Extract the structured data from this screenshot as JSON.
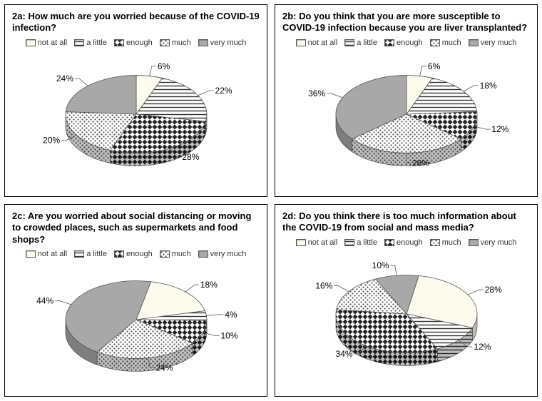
{
  "categories": [
    "not at all",
    "a little",
    "enough",
    "much",
    "very much"
  ],
  "patterns": {
    "not_at_all": {
      "type": "plain",
      "fill": "#fcfbee"
    },
    "a_little": {
      "type": "hstripe",
      "bg": "#ffffff",
      "stroke": "#333333"
    },
    "enough": {
      "type": "diamond",
      "bg": "#ffffff",
      "stroke": "#222222"
    },
    "much": {
      "type": "dots",
      "bg": "#ffffff",
      "fill": "#555555"
    },
    "very_much": {
      "type": "plain",
      "fill": "#a8a8a8"
    }
  },
  "label_fontsize": 12,
  "title_fontsize": 13,
  "pie_tilt": 0.55,
  "pie_thickness": 18,
  "pie_rx": 110,
  "border_color": "#000000",
  "background": "#ffffff",
  "panels": [
    {
      "id": "2a",
      "title": "2a: How much are you worried because of the COVID-19 infection?",
      "start_angle": -90,
      "slices": [
        {
          "label": "not at all",
          "value": 6,
          "pattern": "not_at_all"
        },
        {
          "label": "a little",
          "value": 22,
          "pattern": "a_little"
        },
        {
          "label": "enough",
          "value": 28,
          "pattern": "enough"
        },
        {
          "label": "much",
          "value": 20,
          "pattern": "much"
        },
        {
          "label": "very much",
          "value": 24,
          "pattern": "very_much"
        }
      ]
    },
    {
      "id": "2b",
      "title": "2b: Do you think that you are more susceptible to COVID-19 infection because you are liver transplanted?",
      "start_angle": -90,
      "slices": [
        {
          "label": "not at all",
          "value": 6,
          "pattern": "not_at_all"
        },
        {
          "label": "a little",
          "value": 18,
          "pattern": "a_little"
        },
        {
          "label": "enough",
          "value": 12,
          "pattern": "enough"
        },
        {
          "label": "much",
          "value": 28,
          "pattern": "much"
        },
        {
          "label": "very much",
          "value": 36,
          "pattern": "very_much"
        }
      ]
    },
    {
      "id": "2c",
      "title": "2c: Are you worried about social distancing or moving to crowded places, such as supermarkets and food shops?",
      "start_angle": -78,
      "slices": [
        {
          "label": "not at all",
          "value": 18,
          "pattern": "not_at_all"
        },
        {
          "label": "a little",
          "value": 4,
          "pattern": "a_little"
        },
        {
          "label": "enough",
          "value": 10,
          "pattern": "enough"
        },
        {
          "label": "much",
          "value": 24,
          "pattern": "much"
        },
        {
          "label": "very much",
          "value": 44,
          "pattern": "very_much"
        }
      ]
    },
    {
      "id": "2d",
      "title": "2d: Do you think there is too much information about the COVID-19 from social and mass media?",
      "start_angle": -80,
      "slices": [
        {
          "label": "not at all",
          "value": 28,
          "pattern": "not_at_all"
        },
        {
          "label": "a little",
          "value": 12,
          "pattern": "a_little"
        },
        {
          "label": "enough",
          "value": 34,
          "pattern": "enough"
        },
        {
          "label": "much",
          "value": 16,
          "pattern": "much"
        },
        {
          "label": "very much",
          "value": 10,
          "pattern": "very_much"
        }
      ]
    }
  ]
}
